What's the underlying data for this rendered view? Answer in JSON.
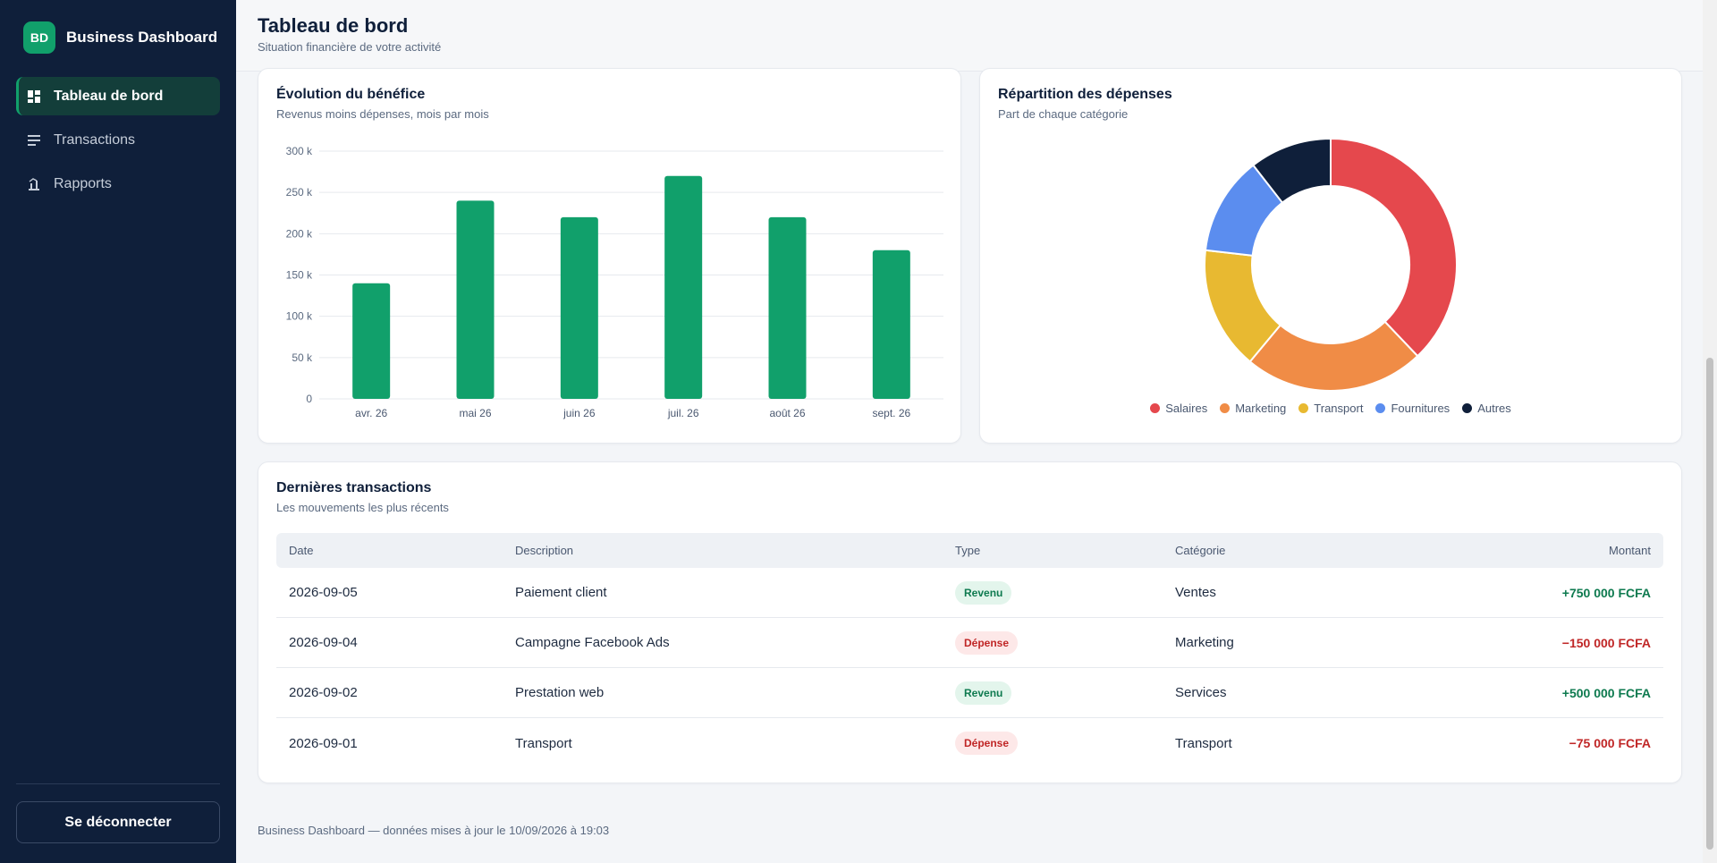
{
  "app": {
    "logo_initials": "BD",
    "name": "Business Dashboard"
  },
  "sidebar": {
    "items": [
      {
        "label": "Tableau de bord",
        "icon": "dashboard-grid-icon",
        "active": true
      },
      {
        "label": "Transactions",
        "icon": "list-lines-icon",
        "active": false
      },
      {
        "label": "Rapports",
        "icon": "report-chart-icon",
        "active": false
      }
    ],
    "logout_label": "Se déconnecter"
  },
  "header": {
    "title": "Tableau de bord",
    "subtitle": "Situation financière de votre activité"
  },
  "profit_card": {
    "title": "Évolution du bénéfice",
    "subtitle": "Revenus moins dépenses, mois par mois"
  },
  "expenses_card": {
    "title": "Répartition des dépenses",
    "subtitle": "Part de chaque catégorie"
  },
  "chart_data": [
    {
      "type": "bar",
      "title": "Évolution du bénéfice",
      "subtitle": "Revenus moins dépenses, mois par mois",
      "categories": [
        "avr. 26",
        "mai 26",
        "juin 26",
        "juil. 26",
        "août 26",
        "sept. 26"
      ],
      "values": [
        140000,
        240000,
        220000,
        270000,
        220000,
        180000
      ],
      "ylim": [
        0,
        300000
      ],
      "yticks": [
        0,
        50000,
        100000,
        150000,
        200000,
        250000,
        300000
      ],
      "ytick_labels": [
        "0",
        "50 k",
        "100 k",
        "150 k",
        "200 k",
        "250 k",
        "300 k"
      ],
      "grid": true,
      "color": "#11a06b"
    },
    {
      "type": "pie",
      "donut": true,
      "title": "Répartition des dépenses",
      "subtitle": "Part de chaque catégorie",
      "labels": [
        "Salaires",
        "Marketing",
        "Transport",
        "Fournitures",
        "Autres"
      ],
      "values": [
        36,
        22,
        15,
        12,
        10
      ],
      "colors": [
        "#e5484d",
        "#f08c46",
        "#e8b931",
        "#5b8def",
        "#0f1f3a"
      ],
      "legend": "bottom"
    }
  ],
  "transactions": {
    "title": "Dernières transactions",
    "subtitle": "Les mouvements les plus récents",
    "columns": [
      "Date",
      "Description",
      "Type",
      "Catégorie",
      "Montant"
    ],
    "rows": [
      {
        "date": "2026-09-05",
        "description": "Paiement client",
        "type": "Revenu",
        "category": "Ventes",
        "amount": "+750 000 FCFA"
      },
      {
        "date": "2026-09-04",
        "description": "Campagne Facebook Ads",
        "type": "Dépense",
        "category": "Marketing",
        "amount": "−150 000 FCFA"
      },
      {
        "date": "2026-09-02",
        "description": "Prestation web",
        "type": "Revenu",
        "category": "Services",
        "amount": "+500 000 FCFA"
      },
      {
        "date": "2026-09-01",
        "description": "Transport",
        "type": "Dépense",
        "category": "Transport",
        "amount": "−75 000 FCFA"
      }
    ]
  },
  "footer": {
    "text": "Business Dashboard — données mises à jour le 10/09/2026 à 19:03"
  },
  "colors": {
    "sidebar_bg": "#0f1f3a",
    "accent": "#11a06b",
    "income": "#0e7a4f",
    "expense": "#c02626"
  }
}
